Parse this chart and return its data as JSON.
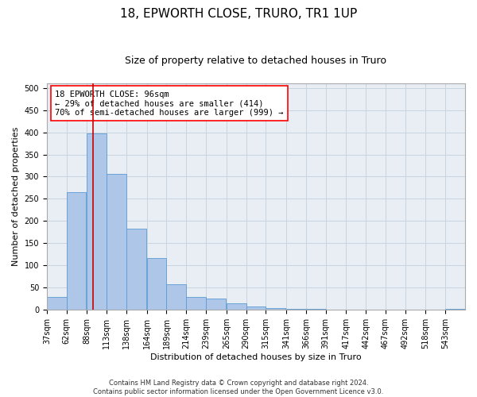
{
  "title": "18, EPWORTH CLOSE, TRURO, TR1 1UP",
  "subtitle": "Size of property relative to detached houses in Truro",
  "xlabel": "Distribution of detached houses by size in Truro",
  "ylabel": "Number of detached properties",
  "footer_line1": "Contains HM Land Registry data © Crown copyright and database right 2024.",
  "footer_line2": "Contains public sector information licensed under the Open Government Licence v3.0.",
  "annotation_line1": "18 EPWORTH CLOSE: 96sqm",
  "annotation_line2": "← 29% of detached houses are smaller (414)",
  "annotation_line3": "70% of semi-detached houses are larger (999) →",
  "bar_edges": [
    37,
    62,
    88,
    113,
    138,
    164,
    189,
    214,
    239,
    265,
    290,
    315,
    341,
    366,
    391,
    417,
    442,
    467,
    492,
    518,
    543
  ],
  "bar_heights": [
    30,
    265,
    397,
    307,
    183,
    116,
    58,
    30,
    25,
    15,
    8,
    5,
    3,
    2,
    1,
    1,
    1,
    1,
    1,
    1,
    3
  ],
  "bar_color": "#aec6e8",
  "bar_edge_color": "#5b9bd5",
  "vline_x": 96,
  "vline_color": "#cc0000",
  "ylim": [
    0,
    510
  ],
  "yticks": [
    0,
    50,
    100,
    150,
    200,
    250,
    300,
    350,
    400,
    450,
    500
  ],
  "grid_color": "#c8d4e0",
  "bg_color": "#e8eef4",
  "title_fontsize": 11,
  "subtitle_fontsize": 9,
  "axis_label_fontsize": 8,
  "tick_fontsize": 7,
  "annotation_fontsize": 7.5,
  "footer_fontsize": 6
}
